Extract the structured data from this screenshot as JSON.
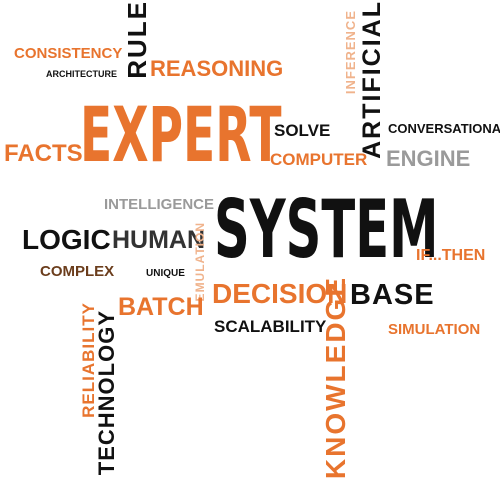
{
  "words": {
    "expert": "EXPERT",
    "system": "SYSTEM",
    "consistency": "CONSISTENCY",
    "architecture": "ARCHITECTURE",
    "rule": "RULE",
    "reasoning": "REASONING",
    "inference": "INFERENCE",
    "artificial": "ARTIFICIAL",
    "facts": "FACTS",
    "solve": "SOLVE",
    "conversational": "CONVERSATIONAL",
    "computer": "COMPUTER",
    "engine": "ENGINE",
    "intelligence": "INTELLIGENCE",
    "logic": "LOGIC",
    "human": "HUMAN",
    "emulation": "EMULATION",
    "if_then": "IF...THEN",
    "complex": "COMPLEX",
    "unique": "UNIQUE",
    "decision": "DECISION",
    "base": "BASE",
    "batch": "BATCH",
    "knowledge": "KNOWLEDGE",
    "scalability": "SCALABILITY",
    "simulation": "SIMULATION",
    "reliability": "RELIABILITY",
    "technology": "TECHNOLOGY"
  },
  "colors": {
    "orange": "#e8742e",
    "black": "#111111",
    "gray": "#9a9a9a",
    "light_orange": "#f0b38c"
  }
}
